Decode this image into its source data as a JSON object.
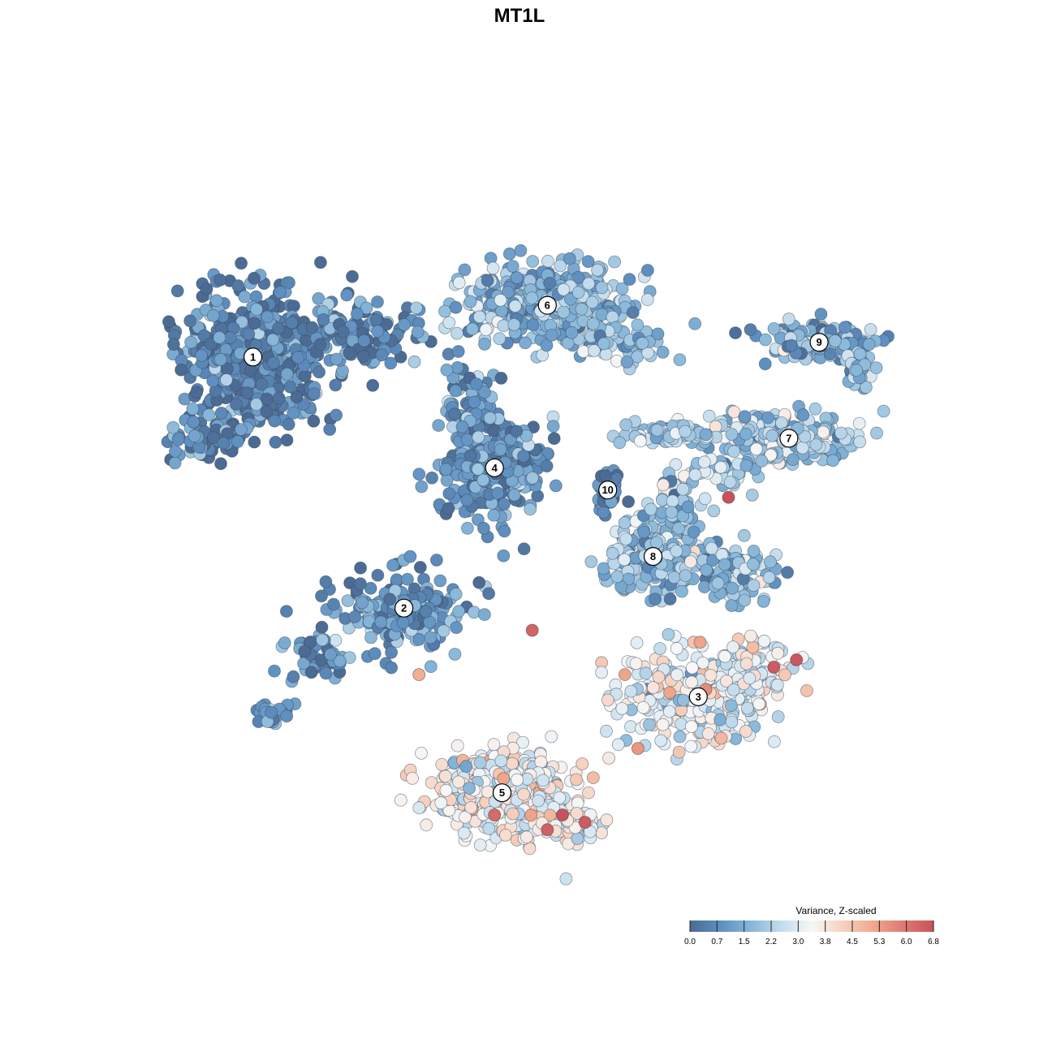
{
  "chart_data": {
    "type": "scatter",
    "title": "MT1L",
    "xlabel": "",
    "ylabel": "",
    "grid": false,
    "axes_visible": false,
    "legend": {
      "title": "Variance, Z-scaled",
      "placement": "bottom-right",
      "ticks": [
        "0.0",
        "0.7",
        "1.5",
        "2.2",
        "3.0",
        "3.8",
        "4.5",
        "5.3",
        "6.0",
        "6.8"
      ],
      "range": [
        0.0,
        6.8
      ],
      "colors": [
        "#4b6b94",
        "#5f8fc0",
        "#86b6d8",
        "#c3dced",
        "#f7f7f7",
        "#f6d2c1",
        "#f0a98d",
        "#de7a72",
        "#c8525c"
      ]
    },
    "clusters": [
      {
        "label": "1",
        "x": 0.12,
        "y": 0.72,
        "value_mean": 0.6
      },
      {
        "label": "2",
        "x": 0.32,
        "y": 0.38,
        "value_mean": 0.9
      },
      {
        "label": "3",
        "x": 0.71,
        "y": 0.26,
        "value_mean": 3.2
      },
      {
        "label": "4",
        "x": 0.44,
        "y": 0.57,
        "value_mean": 1.0
      },
      {
        "label": "5",
        "x": 0.45,
        "y": 0.13,
        "value_mean": 3.4
      },
      {
        "label": "6",
        "x": 0.51,
        "y": 0.79,
        "value_mean": 1.7
      },
      {
        "label": "7",
        "x": 0.83,
        "y": 0.61,
        "value_mean": 2.2
      },
      {
        "label": "8",
        "x": 0.65,
        "y": 0.45,
        "value_mean": 1.9
      },
      {
        "label": "9",
        "x": 0.87,
        "y": 0.74,
        "value_mean": 1.6
      },
      {
        "label": "10",
        "x": 0.59,
        "y": 0.54,
        "value_mean": 0.5
      }
    ],
    "highlight_points": [
      {
        "x": 0.75,
        "y": 0.53,
        "value": 6.8
      },
      {
        "x": 0.49,
        "y": 0.35,
        "value": 6.4
      },
      {
        "x": 0.81,
        "y": 0.3,
        "value": 6.6
      },
      {
        "x": 0.84,
        "y": 0.31,
        "value": 6.7
      },
      {
        "x": 0.51,
        "y": 0.08,
        "value": 6.5
      },
      {
        "x": 0.53,
        "y": 0.1,
        "value": 6.8
      },
      {
        "x": 0.56,
        "y": 0.09,
        "value": 6.6
      },
      {
        "x": 0.44,
        "y": 0.1,
        "value": 6.3
      },
      {
        "x": 0.72,
        "y": 0.27,
        "value": 5.6
      },
      {
        "x": 0.63,
        "y": 0.19,
        "value": 5.4
      },
      {
        "x": 0.34,
        "y": 0.29,
        "value": 5.0
      }
    ]
  }
}
